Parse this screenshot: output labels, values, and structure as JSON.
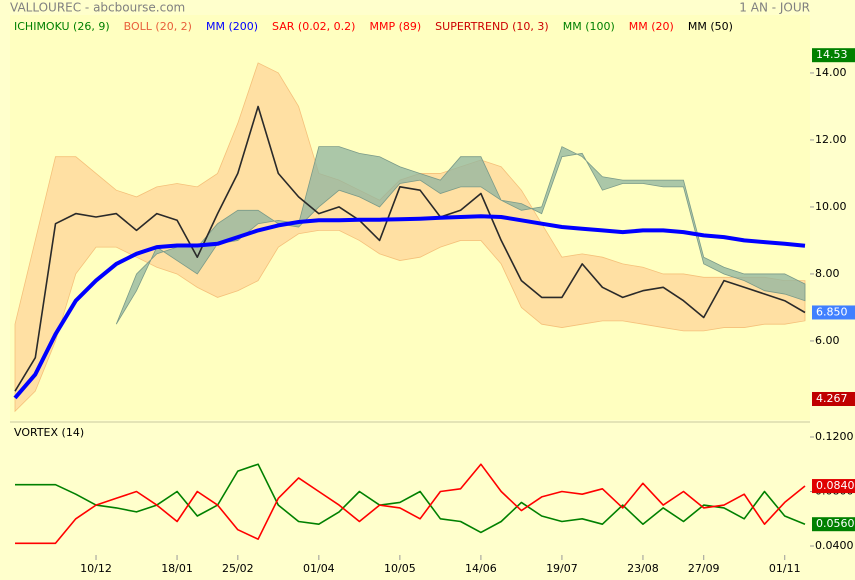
{
  "chart_data": [
    {
      "type": "line",
      "title": "VALLOUREC - abcbourse.com",
      "subtitle": "1 AN - JOUR",
      "legend": [
        {
          "name": "ICHIMOKU (26, 9)",
          "color": "#008000"
        },
        {
          "name": "BOLL (20, 2)",
          "color": "#e8603c"
        },
        {
          "name": "MM (200)",
          "color": "#0000ff"
        },
        {
          "name": "SAR (0.02, 0.2)",
          "color": "#ff0000"
        },
        {
          "name": "MMP (89)",
          "color": "#ff0000"
        },
        {
          "name": "SUPERTREND (10, 3)",
          "color": "#cc0000"
        },
        {
          "name": "MM (100)",
          "color": "#008000"
        },
        {
          "name": "MM (20)",
          "color": "#ff0000"
        },
        {
          "name": "MM (50)",
          "color": "#000000"
        }
      ],
      "ylim": [
        3.64,
        15.73
      ],
      "yticks": [
        {
          "value": 6,
          "label": "6.00"
        },
        {
          "value": 8,
          "label": "8.00"
        },
        {
          "value": 10,
          "label": "10.00"
        },
        {
          "value": 12,
          "label": "12.00"
        },
        {
          "value": 14,
          "label": "14.00"
        }
      ],
      "bollinger": {
        "color": "#ffd699",
        "upper": [
          6.5,
          9,
          11.5,
          11.5,
          11,
          10.5,
          10.3,
          10.6,
          10.7,
          10.6,
          11,
          12.5,
          14.3,
          14,
          13,
          11,
          10.8,
          10.5,
          10.2,
          10.8,
          11,
          11,
          11.2,
          11.4,
          11.2,
          10.5,
          9.5,
          8.5,
          8.6,
          8.5,
          8.3,
          8.2,
          8.0,
          8.0,
          7.9,
          7.9,
          7.9,
          7.9,
          7.8,
          7.8
        ],
        "lower": [
          3.9,
          4.5,
          6,
          8,
          8.8,
          8.8,
          8.5,
          8.2,
          8.0,
          7.6,
          7.3,
          7.5,
          7.8,
          8.8,
          9.2,
          9.3,
          9.3,
          9.0,
          8.6,
          8.4,
          8.5,
          8.8,
          9.0,
          9.0,
          8.3,
          7.0,
          6.5,
          6.4,
          6.5,
          6.6,
          6.6,
          6.5,
          6.4,
          6.3,
          6.3,
          6.4,
          6.4,
          6.5,
          6.5,
          6.6
        ]
      },
      "ichimoku": {
        "color": "#8fb4a0",
        "span_a": [
          null,
          null,
          null,
          null,
          null,
          6.5,
          8.0,
          8.6,
          8.8,
          8.8,
          9.5,
          9.9,
          9.9,
          9.5,
          9.4,
          10.0,
          10.5,
          10.3,
          10.0,
          10.7,
          10.8,
          10.4,
          10.6,
          10.6,
          10.2,
          10.1,
          9.8,
          11.5,
          11.6,
          10.5,
          10.7,
          10.7,
          10.6,
          10.6,
          8.3,
          8.0,
          7.8,
          7.5,
          7.4,
          7.2
        ],
        "span_b": [
          null,
          null,
          null,
          null,
          null,
          6.5,
          7.5,
          8.8,
          8.4,
          8.0,
          8.9,
          9.0,
          9.5,
          9.6,
          9.5,
          11.8,
          11.8,
          11.6,
          11.5,
          11.2,
          11.0,
          10.8,
          11.5,
          11.5,
          10.2,
          9.9,
          10.0,
          11.8,
          11.5,
          10.9,
          10.8,
          10.8,
          10.8,
          10.8,
          8.5,
          8.2,
          8.0,
          8.0,
          8.0,
          7.7
        ]
      },
      "series": [
        {
          "color": "#2a2a2a",
          "values": [
            4.5,
            5.5,
            9.5,
            9.8,
            9.7,
            9.8,
            9.3,
            9.8,
            9.6,
            8.5,
            9.8,
            11.0,
            13.0,
            11.0,
            10.3,
            9.8,
            10.0,
            9.6,
            9.0,
            10.6,
            10.5,
            9.7,
            9.9,
            10.4,
            9.0,
            7.8,
            7.3,
            7.3,
            8.3,
            7.6,
            7.3,
            7.5,
            7.6,
            7.2,
            6.7,
            7.8,
            7.6,
            7.4,
            7.2,
            6.85
          ]
        },
        {
          "color": "#0000ff",
          "values": [
            4.3,
            5.0,
            6.2,
            7.2,
            7.8,
            8.3,
            8.6,
            8.8,
            8.85,
            8.85,
            8.9,
            9.1,
            9.3,
            9.45,
            9.55,
            9.6,
            9.6,
            9.62,
            9.62,
            9.63,
            9.65,
            9.68,
            9.7,
            9.72,
            9.7,
            9.6,
            9.5,
            9.4,
            9.35,
            9.3,
            9.25,
            9.3,
            9.3,
            9.25,
            9.15,
            9.1,
            9.0,
            8.95,
            8.9,
            8.84
          ]
        }
      ],
      "markers": [
        {
          "value": 14.53,
          "label": "14.53",
          "color": "#008000"
        },
        {
          "value": 6.85,
          "label": "6.850",
          "color": "#4080ff"
        },
        {
          "value": 4.267,
          "label": "4.267",
          "color": "#c00000"
        }
      ]
    },
    {
      "type": "line",
      "title": "VORTEX (14)",
      "categories": [
        null,
        null,
        null,
        null,
        "10/12",
        null,
        null,
        null,
        "18/01",
        null,
        null,
        "25/02",
        null,
        null,
        null,
        "01/04",
        null,
        null,
        null,
        "10/05",
        null,
        null,
        null,
        "14/06",
        null,
        null,
        null,
        "19/07",
        null,
        null,
        null,
        "23/08",
        null,
        null,
        "27/09",
        null,
        null,
        null,
        "01/11",
        null
      ],
      "ylim": [
        0.0334,
        0.1288
      ],
      "yticks": [
        {
          "value": 0.04,
          "label": "0.0400"
        },
        {
          "value": 0.08,
          "label": "0.0800"
        },
        {
          "value": 0.12,
          "label": "0.1200"
        }
      ],
      "series": [
        {
          "color": "#008000",
          "values": [
            0.085,
            0.085,
            0.085,
            0.078,
            0.07,
            0.068,
            0.065,
            0.07,
            0.08,
            0.062,
            0.07,
            0.095,
            0.1,
            0.07,
            0.058,
            0.056,
            0.065,
            0.08,
            0.07,
            0.072,
            0.08,
            0.06,
            0.058,
            0.05,
            0.058,
            0.072,
            0.062,
            0.058,
            0.06,
            0.056,
            0.07,
            0.056,
            0.068,
            0.058,
            0.07,
            0.068,
            0.06,
            0.08,
            0.062,
            0.056
          ]
        },
        {
          "color": "#ff0000",
          "values": [
            0.042,
            0.042,
            0.042,
            0.06,
            0.07,
            0.075,
            0.08,
            0.07,
            0.058,
            0.08,
            0.07,
            0.052,
            0.045,
            0.075,
            0.09,
            0.08,
            0.07,
            0.058,
            0.07,
            0.068,
            0.06,
            0.08,
            0.082,
            0.1,
            0.08,
            0.066,
            0.076,
            0.08,
            0.078,
            0.082,
            0.068,
            0.086,
            0.07,
            0.08,
            0.068,
            0.07,
            0.078,
            0.056,
            0.072,
            0.084
          ]
        }
      ],
      "markers": [
        {
          "value": 0.084,
          "label": "0.0840",
          "color": "#e00000"
        },
        {
          "value": 0.056,
          "label": "0.0560",
          "color": "#008000"
        }
      ]
    }
  ]
}
